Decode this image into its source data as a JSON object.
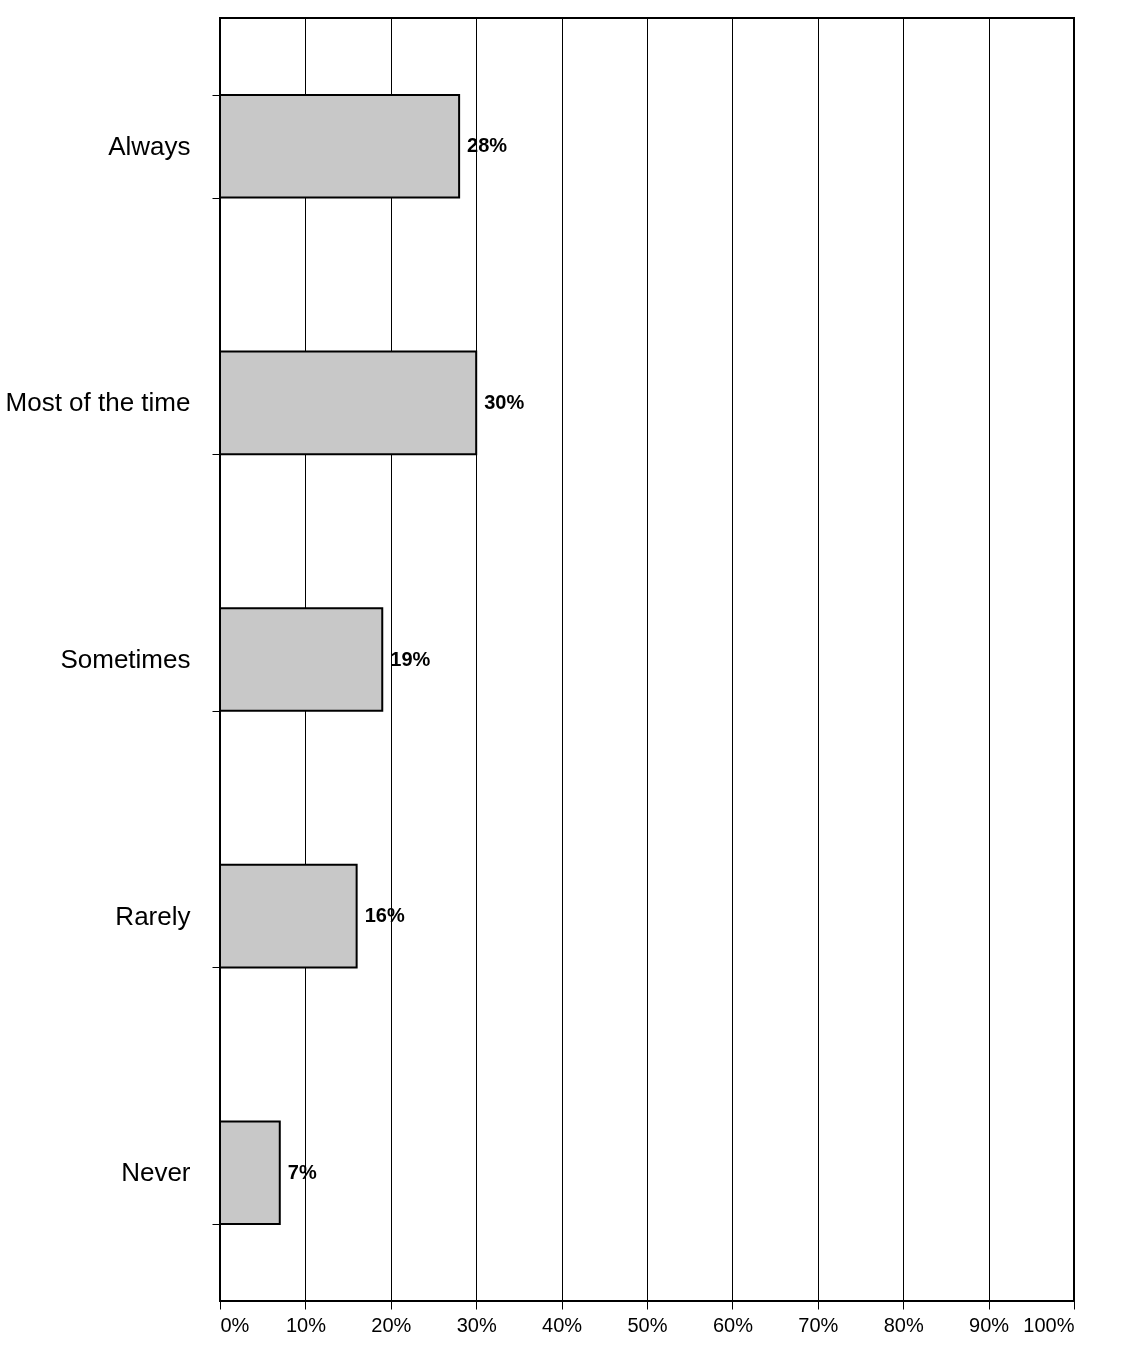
{
  "chart_data": {
    "type": "bar",
    "orientation": "horizontal",
    "categories": [
      "Always",
      "Most of the time",
      "Sometimes",
      "Rarely",
      "Never"
    ],
    "values": [
      28,
      30,
      19,
      16,
      7
    ],
    "value_labels": [
      "28%",
      "30%",
      "19%",
      "16%",
      "7%"
    ],
    "color": "#c8c8c8",
    "xlim": [
      0,
      100
    ],
    "xticks": [
      {
        "value": 0,
        "label": "0%"
      },
      {
        "value": 10,
        "label": "10%"
      },
      {
        "value": 20,
        "label": "20%"
      },
      {
        "value": 30,
        "label": "30%"
      },
      {
        "value": 40,
        "label": "40%"
      },
      {
        "value": 50,
        "label": "50%"
      },
      {
        "value": 60,
        "label": "60%"
      },
      {
        "value": 70,
        "label": "70%"
      },
      {
        "value": 80,
        "label": "80%"
      },
      {
        "value": 90,
        "label": "90%"
      },
      {
        "value": 100,
        "label": "100%"
      }
    ],
    "grid": "x"
  }
}
